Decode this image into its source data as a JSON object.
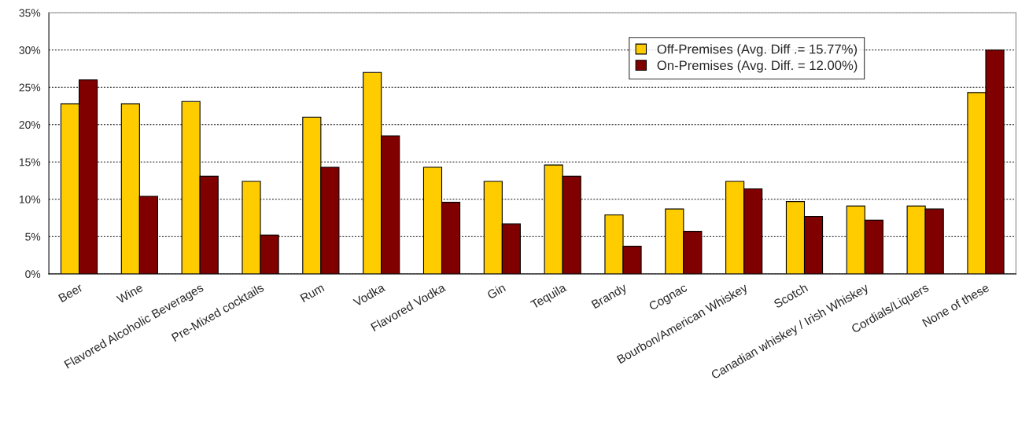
{
  "chart_data": {
    "type": "bar",
    "categories": [
      "Beer",
      "Wine",
      "Flavored Alcoholic Beverages",
      "Pre-Mixed cocktails",
      "Rum",
      "Vodka",
      "Flavored Vodka",
      "Gin",
      "Tequila",
      "Brandy",
      "Cognac",
      "Bourbon/American Whiskey",
      "Scotch",
      "Canadian whiskey / Irish Whiskey",
      "Cordials/Liquers",
      "None of these"
    ],
    "series": [
      {
        "name": "Off-Premises (Avg. Diff .= 15.77%)",
        "color": "#ffcc00",
        "values": [
          22.8,
          22.8,
          23.1,
          12.4,
          21.0,
          27.0,
          14.3,
          12.4,
          14.6,
          7.9,
          8.7,
          12.4,
          9.7,
          9.1,
          9.1,
          24.3
        ]
      },
      {
        "name": "On-Premises (Avg. Diff. = 12.00%)",
        "color": "#800000",
        "values": [
          26.0,
          10.4,
          13.1,
          5.2,
          14.3,
          18.5,
          9.6,
          6.7,
          13.1,
          3.7,
          5.7,
          11.4,
          7.7,
          7.2,
          8.7,
          30.0
        ]
      }
    ],
    "ylim": [
      0,
      35
    ],
    "yticks": [
      {
        "value": 0,
        "label": "0%"
      },
      {
        "value": 5,
        "label": "5%"
      },
      {
        "value": 10,
        "label": "10%"
      },
      {
        "value": 15,
        "label": "15%"
      },
      {
        "value": 20,
        "label": "20%"
      },
      {
        "value": 25,
        "label": "25%"
      },
      {
        "value": 30,
        "label": "30%"
      },
      {
        "value": 35,
        "label": "35%"
      }
    ],
    "grid": "y",
    "legend": "top right"
  }
}
